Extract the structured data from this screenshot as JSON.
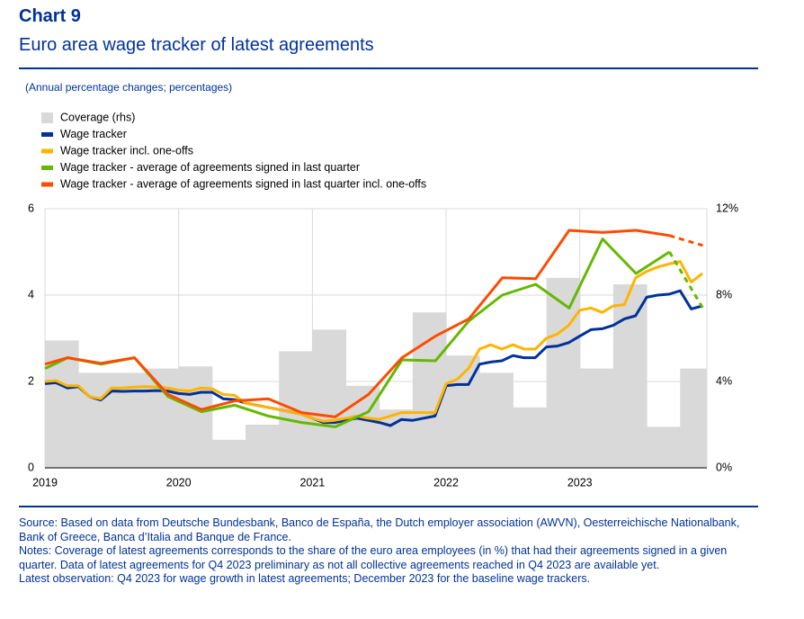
{
  "chart_data": {
    "type": "line",
    "title": "Chart 9",
    "subtitle": "Euro area wage tracker of latest agreements",
    "unit_note": "(Annual percentage changes; percentages)",
    "xlim": [
      2019,
      2023.95
    ],
    "xticks": [
      2019,
      2020,
      2021,
      2022,
      2023
    ],
    "ylim": [
      0,
      6
    ],
    "yticks": [
      0,
      2,
      4,
      6
    ],
    "y2lim": [
      0,
      12
    ],
    "y2ticks": [
      {
        "value": 0,
        "label": "0%"
      },
      {
        "value": 4,
        "label": "4%"
      },
      {
        "value": 8,
        "label": "8%"
      },
      {
        "value": 12,
        "label": "12%"
      }
    ],
    "grid": true,
    "legend": "top-left",
    "series": [
      {
        "name": "Coverage (rhs)",
        "type": "bar",
        "axis": "y2",
        "color": "#d9d9d9",
        "bar_width": 0.25,
        "x": [
          2019,
          2019.25,
          2019.5,
          2019.75,
          2020,
          2020.25,
          2020.5,
          2020.75,
          2021,
          2021.25,
          2021.5,
          2021.75,
          2022,
          2022.25,
          2022.5,
          2022.75,
          2023,
          2023.25,
          2023.5,
          2023.75
        ],
        "values": [
          5.9,
          4.4,
          4.4,
          4.6,
          4.7,
          1.3,
          2.0,
          5.4,
          6.4,
          3.8,
          2.7,
          7.2,
          5.2,
          4.4,
          2.8,
          8.8,
          4.6,
          8.5,
          1.9,
          4.6
        ]
      },
      {
        "name": "Wage tracker",
        "color": "#003299",
        "x": [
          2019.0,
          2019.083,
          2019.167,
          2019.25,
          2019.333,
          2019.417,
          2019.5,
          2019.583,
          2019.667,
          2019.75,
          2019.833,
          2019.917,
          2020.0,
          2020.083,
          2020.167,
          2020.25,
          2020.333,
          2020.417,
          2020.5,
          2020.583,
          2020.667,
          2020.75,
          2020.833,
          2020.917,
          2021.0,
          2021.083,
          2021.167,
          2021.25,
          2021.333,
          2021.417,
          2021.5,
          2021.583,
          2021.667,
          2021.75,
          2021.833,
          2021.917,
          2022.0,
          2022.083,
          2022.167,
          2022.25,
          2022.333,
          2022.417,
          2022.5,
          2022.583,
          2022.667,
          2022.75,
          2022.833,
          2022.917,
          2023.0,
          2023.083,
          2023.167,
          2023.25,
          2023.333,
          2023.417,
          2023.5,
          2023.583,
          2023.667,
          2023.75,
          2023.833,
          2023.917
        ],
        "values": [
          1.95,
          1.97,
          1.85,
          1.88,
          1.65,
          1.57,
          1.78,
          1.77,
          1.78,
          1.78,
          1.79,
          1.78,
          1.72,
          1.7,
          1.75,
          1.75,
          1.6,
          1.58,
          1.5,
          1.45,
          1.4,
          1.35,
          1.3,
          1.25,
          1.15,
          1.05,
          1.05,
          1.1,
          1.15,
          1.1,
          1.05,
          0.98,
          1.12,
          1.1,
          1.15,
          1.2,
          1.9,
          1.93,
          1.93,
          2.4,
          2.45,
          2.48,
          2.6,
          2.55,
          2.55,
          2.8,
          2.82,
          2.9,
          3.05,
          3.2,
          3.22,
          3.3,
          3.45,
          3.52,
          3.95,
          4.0,
          4.02,
          4.1,
          3.68,
          3.75
        ]
      },
      {
        "name": "Wage tracker incl. one-offs",
        "color": "#ffb400",
        "x": [
          2019.0,
          2019.083,
          2019.167,
          2019.25,
          2019.333,
          2019.417,
          2019.5,
          2019.583,
          2019.667,
          2019.75,
          2019.833,
          2019.917,
          2020.0,
          2020.083,
          2020.167,
          2020.25,
          2020.333,
          2020.417,
          2020.5,
          2020.583,
          2020.667,
          2020.75,
          2020.833,
          2020.917,
          2021.0,
          2021.083,
          2021.167,
          2021.25,
          2021.333,
          2021.417,
          2021.5,
          2021.583,
          2021.667,
          2021.75,
          2021.833,
          2021.917,
          2022.0,
          2022.083,
          2022.167,
          2022.25,
          2022.333,
          2022.417,
          2022.5,
          2022.583,
          2022.667,
          2022.75,
          2022.833,
          2022.917,
          2023.0,
          2023.083,
          2023.167,
          2023.25,
          2023.333,
          2023.417,
          2023.5,
          2023.583,
          2023.667,
          2023.75,
          2023.833,
          2023.917
        ],
        "values": [
          2.0,
          2.02,
          1.9,
          1.9,
          1.65,
          1.6,
          1.85,
          1.85,
          1.87,
          1.88,
          1.87,
          1.85,
          1.8,
          1.78,
          1.85,
          1.83,
          1.7,
          1.68,
          1.5,
          1.45,
          1.4,
          1.35,
          1.3,
          1.25,
          1.15,
          1.08,
          1.1,
          1.15,
          1.2,
          1.15,
          1.12,
          1.2,
          1.28,
          1.28,
          1.28,
          1.28,
          1.95,
          2.05,
          2.3,
          2.75,
          2.85,
          2.75,
          2.85,
          2.75,
          2.75,
          3.0,
          3.1,
          3.3,
          3.65,
          3.7,
          3.6,
          3.75,
          3.78,
          4.4,
          4.55,
          4.65,
          4.72,
          4.78,
          4.3,
          4.5
        ]
      },
      {
        "name": "Wage tracker - average of agreements signed in last quarter",
        "color": "#65b800",
        "dashed_last_segment": true,
        "x": [
          2019.0,
          2019.17,
          2019.42,
          2019.67,
          2019.92,
          2020.17,
          2020.42,
          2020.67,
          2020.92,
          2021.17,
          2021.42,
          2021.67,
          2021.92,
          2022.17,
          2022.42,
          2022.67,
          2022.92,
          2023.17,
          2023.42,
          2023.67,
          2023.92
        ],
        "values": [
          2.3,
          2.55,
          2.4,
          2.55,
          1.65,
          1.3,
          1.45,
          1.2,
          1.05,
          0.95,
          1.3,
          2.5,
          2.48,
          3.4,
          4.0,
          4.25,
          3.7,
          5.3,
          4.5,
          5.0,
          3.7
        ]
      },
      {
        "name": "Wage tracker - average of agreements signed in last quarter incl. one-offs",
        "color": "#ff4b00",
        "dashed_last_segment": true,
        "x": [
          2019.0,
          2019.17,
          2019.42,
          2019.67,
          2019.92,
          2020.17,
          2020.42,
          2020.67,
          2020.92,
          2021.17,
          2021.42,
          2021.67,
          2021.92,
          2022.17,
          2022.42,
          2022.67,
          2022.92,
          2023.17,
          2023.42,
          2023.67,
          2023.92
        ],
        "values": [
          2.4,
          2.55,
          2.42,
          2.55,
          1.7,
          1.35,
          1.55,
          1.6,
          1.28,
          1.18,
          1.7,
          2.55,
          3.05,
          3.45,
          4.4,
          4.38,
          5.5,
          5.45,
          5.5,
          5.38,
          5.15
        ]
      }
    ],
    "source": "Source: Based on data from Deutsche Bundesbank, Banco de España, the Dutch employer association (AWVN), Oesterreichische Nationalbank, Bank of Greece, Banca d’Italia and Banque de France.",
    "notes": "Notes: Coverage of latest agreements corresponds to the share of the euro area employees (in %) that had their agreements signed in a given quarter. Data of latest agreements for Q4 2023 preliminary as not all collective agreements reached in Q4 2023 are available yet.",
    "latest_observation": "Latest observation: Q4 2023 for wage growth in latest agreements; December 2023 for the baseline wage trackers."
  }
}
